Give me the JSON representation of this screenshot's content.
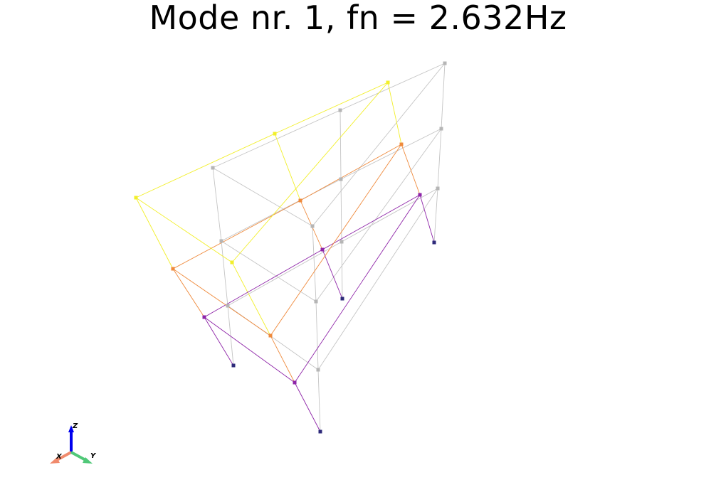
{
  "title": "Mode nr. 1, fn = 2.632Hz",
  "colors": {
    "undeformed": "#c4c4c4",
    "undeformed_node": "#b5b5b5",
    "base": "#2e2a7a",
    "level1": "#8e24a8",
    "level2": "#ef8a3c",
    "level3": "#f2ef2a"
  },
  "axes_widget": {
    "x_label": "X",
    "y_label": "Y",
    "z_label": "Z",
    "x_color": "#f08a6c",
    "y_color": "#50c878",
    "z_color": "#0000ee"
  }
}
